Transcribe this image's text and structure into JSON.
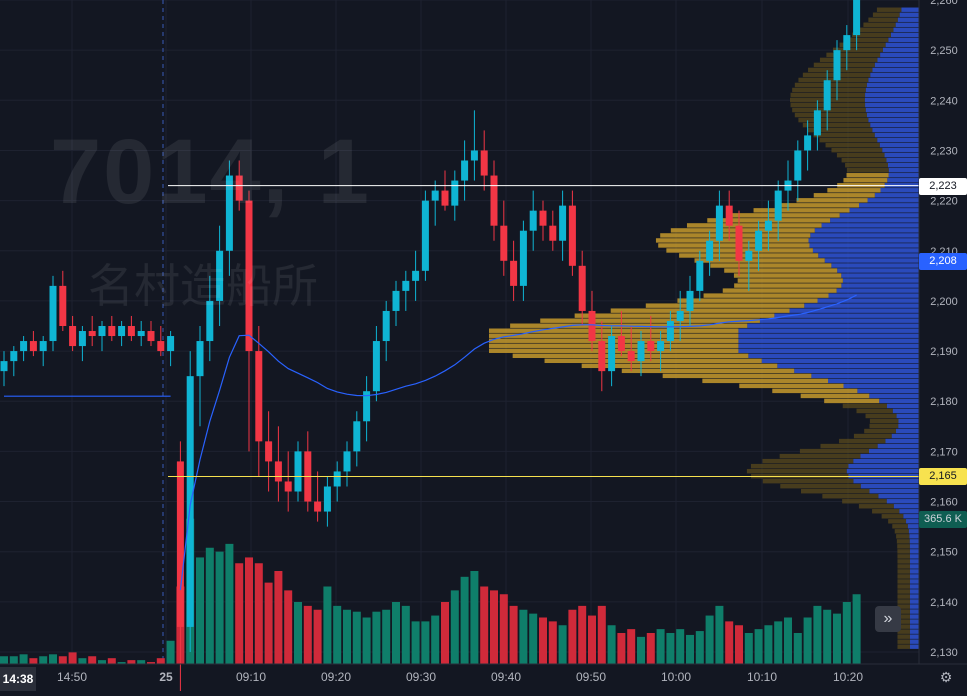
{
  "watermark": {
    "symbol": "7014, 1",
    "name": "名村造船所"
  },
  "time_badge": "14:38",
  "price_labels": {
    "line_white": "2,223",
    "vwap": "2,208",
    "line_yellow": "2,165",
    "volume": "365.6 K"
  },
  "controls": {
    "scroll_right": "»",
    "settings": "⚙"
  },
  "colors": {
    "up": "#0fb5d4",
    "down": "#f23645",
    "vol_up": "#0f7e6a",
    "vol_down": "#d02a3a",
    "vwap": "#2962ff",
    "profile_value": "#c79a2b",
    "profile_rest": "#5a4a1c",
    "profile_blue": "#2f54d6"
  },
  "chart_data": {
    "type": "candlestick",
    "y_ticks": [
      "2,260",
      "2,250",
      "2,240",
      "2,230",
      "2,220",
      "2,210",
      "2,200",
      "2,190",
      "2,180",
      "2,170",
      "2,160",
      "2,150",
      "2,140",
      "2,130"
    ],
    "y_tick_values": [
      2260,
      2250,
      2240,
      2230,
      2220,
      2210,
      2200,
      2190,
      2180,
      2170,
      2160,
      2150,
      2140,
      2130
    ],
    "x_ticks": [
      "14:50",
      "25",
      "09:10",
      "09:20",
      "09:30",
      "09:40",
      "09:50",
      "10:00",
      "10:10",
      "10:20"
    ],
    "horizontal_lines": [
      {
        "price": 2223,
        "color": "#ffffff"
      },
      {
        "price": 2165,
        "color": "#f7e24f"
      }
    ],
    "vwap_current": 2208,
    "volume_current": "365.6 K",
    "session_break_after_candle": 17,
    "candles": [
      [
        2186,
        2190,
        2183,
        2188
      ],
      [
        2188,
        2191,
        2185,
        2190
      ],
      [
        2190,
        2193,
        2188,
        2192
      ],
      [
        2192,
        2194,
        2189,
        2190
      ],
      [
        2190,
        2193,
        2187,
        2192
      ],
      [
        2192,
        2205,
        2190,
        2203
      ],
      [
        2203,
        2206,
        2194,
        2195
      ],
      [
        2195,
        2197,
        2190,
        2191
      ],
      [
        2191,
        2195,
        2188,
        2194
      ],
      [
        2194,
        2197,
        2191,
        2193
      ],
      [
        2193,
        2196,
        2190,
        2195
      ],
      [
        2195,
        2197,
        2192,
        2193
      ],
      [
        2193,
        2196,
        2191,
        2195
      ],
      [
        2195,
        2197,
        2192,
        2193
      ],
      [
        2193,
        2196,
        2191,
        2194
      ],
      [
        2194,
        2196,
        2191,
        2192
      ],
      [
        2192,
        2195,
        2189,
        2190
      ],
      [
        2190,
        2194,
        2187,
        2193
      ],
      [
        2168,
        2172,
        2120,
        2135
      ],
      [
        2135,
        2190,
        2130,
        2185
      ],
      [
        2185,
        2195,
        2175,
        2192
      ],
      [
        2192,
        2205,
        2188,
        2200
      ],
      [
        2200,
        2215,
        2195,
        2210
      ],
      [
        2210,
        2228,
        2205,
        2225
      ],
      [
        2225,
        2228,
        2218,
        2220
      ],
      [
        2220,
        2222,
        2170,
        2190
      ],
      [
        2190,
        2195,
        2165,
        2172
      ],
      [
        2172,
        2178,
        2162,
        2168
      ],
      [
        2168,
        2175,
        2160,
        2164
      ],
      [
        2164,
        2170,
        2158,
        2162
      ],
      [
        2162,
        2172,
        2160,
        2170
      ],
      [
        2170,
        2174,
        2158,
        2160
      ],
      [
        2160,
        2166,
        2156,
        2158
      ],
      [
        2158,
        2165,
        2155,
        2163
      ],
      [
        2163,
        2168,
        2160,
        2166
      ],
      [
        2166,
        2172,
        2163,
        2170
      ],
      [
        2170,
        2178,
        2167,
        2176
      ],
      [
        2176,
        2185,
        2172,
        2182
      ],
      [
        2182,
        2195,
        2180,
        2192
      ],
      [
        2192,
        2200,
        2188,
        2198
      ],
      [
        2198,
        2204,
        2195,
        2202
      ],
      [
        2202,
        2206,
        2198,
        2204
      ],
      [
        2204,
        2210,
        2200,
        2206
      ],
      [
        2206,
        2222,
        2204,
        2220
      ],
      [
        2220,
        2224,
        2215,
        2222
      ],
      [
        2222,
        2226,
        2218,
        2219
      ],
      [
        2219,
        2226,
        2216,
        2224
      ],
      [
        2224,
        2232,
        2220,
        2228
      ],
      [
        2228,
        2238,
        2224,
        2230
      ],
      [
        2230,
        2234,
        2222,
        2225
      ],
      [
        2225,
        2228,
        2212,
        2215
      ],
      [
        2215,
        2220,
        2205,
        2208
      ],
      [
        2208,
        2212,
        2200,
        2203
      ],
      [
        2203,
        2216,
        2200,
        2214
      ],
      [
        2214,
        2222,
        2210,
        2218
      ],
      [
        2218,
        2220,
        2212,
        2215
      ],
      [
        2215,
        2218,
        2210,
        2212
      ],
      [
        2212,
        2222,
        2208,
        2219
      ],
      [
        2219,
        2222,
        2205,
        2207
      ],
      [
        2207,
        2210,
        2195,
        2198
      ],
      [
        2198,
        2202,
        2190,
        2192
      ],
      [
        2192,
        2196,
        2182,
        2186
      ],
      [
        2186,
        2195,
        2183,
        2193
      ],
      [
        2193,
        2198,
        2189,
        2190
      ],
      [
        2190,
        2195,
        2186,
        2188
      ],
      [
        2188,
        2194,
        2185,
        2192
      ],
      [
        2192,
        2197,
        2188,
        2190
      ],
      [
        2190,
        2194,
        2186,
        2192
      ],
      [
        2192,
        2198,
        2190,
        2196
      ],
      [
        2196,
        2202,
        2192,
        2198
      ],
      [
        2198,
        2205,
        2195,
        2202
      ],
      [
        2202,
        2210,
        2200,
        2208
      ],
      [
        2208,
        2214,
        2205,
        2212
      ],
      [
        2212,
        2222,
        2208,
        2219
      ],
      [
        2219,
        2222,
        2212,
        2215
      ],
      [
        2215,
        2218,
        2205,
        2208
      ],
      [
        2208,
        2212,
        2202,
        2210
      ],
      [
        2210,
        2216,
        2206,
        2214
      ],
      [
        2214,
        2220,
        2210,
        2216
      ],
      [
        2216,
        2224,
        2212,
        2222
      ],
      [
        2222,
        2228,
        2218,
        2224
      ],
      [
        2224,
        2232,
        2220,
        2230
      ],
      [
        2230,
        2236,
        2226,
        2233
      ],
      [
        2233,
        2240,
        2230,
        2238
      ],
      [
        2238,
        2246,
        2234,
        2244
      ],
      [
        2244,
        2252,
        2240,
        2250
      ],
      [
        2250,
        2255,
        2246,
        2253
      ],
      [
        2253,
        2262,
        2250,
        2260
      ]
    ],
    "volumes": [
      4,
      4,
      5,
      3,
      4,
      5,
      4,
      6,
      3,
      4,
      2,
      3,
      1,
      2,
      2,
      1,
      3,
      12,
      40,
      75,
      55,
      60,
      58,
      62,
      52,
      55,
      52,
      42,
      48,
      38,
      32,
      30,
      28,
      40,
      30,
      28,
      27,
      24,
      27,
      28,
      32,
      30,
      22,
      22,
      25,
      32,
      38,
      45,
      48,
      40,
      38,
      36,
      30,
      28,
      26,
      24,
      22,
      20,
      28,
      30,
      25,
      30,
      20,
      16,
      18,
      14,
      16,
      18,
      16,
      18,
      15,
      17,
      25,
      30,
      22,
      20,
      16,
      18,
      20,
      22,
      24,
      16,
      24,
      30,
      28,
      26,
      32,
      36
    ],
    "volume_profile": {
      "price_start": 2131,
      "price_end": 2258,
      "step": 1,
      "value_area": [
        2180,
        2225
      ]
    }
  }
}
